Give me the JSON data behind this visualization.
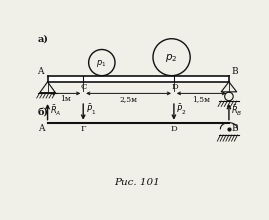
{
  "bg_color": "#f0efe8",
  "title": "Рис. 101",
  "label_a": "а)",
  "label_b": "б)",
  "beam_color": "#111111",
  "dim_1m": "1м",
  "dim_25m": "2,5м",
  "dim_15m": "1,5м"
}
